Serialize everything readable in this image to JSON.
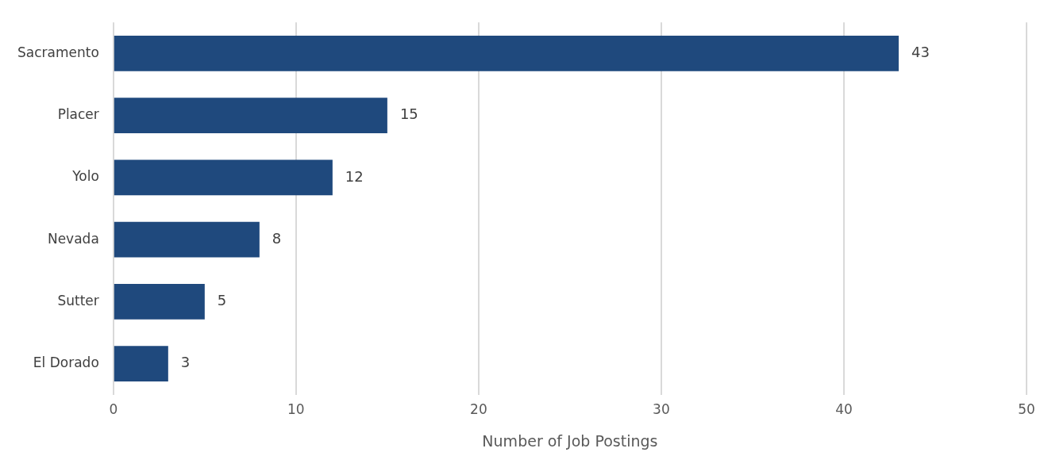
{
  "chart_data": {
    "type": "bar",
    "orientation": "horizontal",
    "xlabel": "Number of Job Postings",
    "categories": [
      "Sacramento",
      "Placer",
      "Yolo",
      "Nevada",
      "Sutter",
      "El Dorado"
    ],
    "values": [
      43,
      15,
      12,
      8,
      5,
      3
    ],
    "color": "#1f497d",
    "xlim": [
      0,
      50
    ],
    "xticks": [
      0,
      10,
      20,
      30,
      40,
      50
    ],
    "grid": "x",
    "data_labels": true,
    "legend": false
  }
}
